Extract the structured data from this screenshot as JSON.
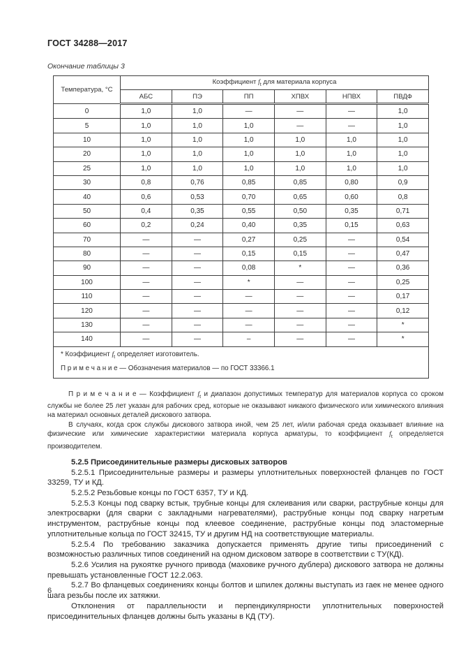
{
  "page": {
    "standard_code": "ГОСТ 34288—2017",
    "table_caption": "Окончание таблицы 3",
    "page_number": "6"
  },
  "table": {
    "temp_header": "Температура, °С",
    "span_header": {
      "prefix": "Коэффициент ",
      "symbol": "f",
      "subscript": "t",
      "suffix": " для материала корпуса"
    },
    "materials": [
      "АБС",
      "ПЭ",
      "ПП",
      "ХПВХ",
      "НПВХ",
      "ПВДФ"
    ],
    "rows": [
      {
        "t": "0",
        "v": [
          "1,0",
          "1,0",
          "—",
          "—",
          "—",
          "1,0"
        ]
      },
      {
        "t": "5",
        "v": [
          "1,0",
          "1,0",
          "1,0",
          "—",
          "—",
          "1,0"
        ]
      },
      {
        "t": "10",
        "v": [
          "1,0",
          "1,0",
          "1,0",
          "1,0",
          "1,0",
          "1,0"
        ]
      },
      {
        "t": "20",
        "v": [
          "1,0",
          "1,0",
          "1,0",
          "1,0",
          "1,0",
          "1,0"
        ]
      },
      {
        "t": "25",
        "v": [
          "1,0",
          "1,0",
          "1,0",
          "1,0",
          "1,0",
          "1,0"
        ]
      },
      {
        "t": "30",
        "v": [
          "0,8",
          "0,76",
          "0,85",
          "0,85",
          "0,80",
          "0,9"
        ]
      },
      {
        "t": "40",
        "v": [
          "0,6",
          "0,53",
          "0,70",
          "0,65",
          "0,60",
          "0,8"
        ]
      },
      {
        "t": "50",
        "v": [
          "0,4",
          "0,35",
          "0,55",
          "0,50",
          "0,35",
          "0,71"
        ]
      },
      {
        "t": "60",
        "v": [
          "0,2",
          "0,24",
          "0,40",
          "0,35",
          "0,15",
          "0,63"
        ]
      },
      {
        "t": "70",
        "v": [
          "—",
          "—",
          "0,27",
          "0,25",
          "—",
          "0,54"
        ]
      },
      {
        "t": "80",
        "v": [
          "—",
          "—",
          "0,15",
          "0,15",
          "—",
          "0,47"
        ]
      },
      {
        "t": "90",
        "v": [
          "—",
          "—",
          "0,08",
          "*",
          "—",
          "0,36"
        ]
      },
      {
        "t": "100",
        "v": [
          "—",
          "—",
          "*",
          "—",
          "—",
          "0,25"
        ]
      },
      {
        "t": "110",
        "v": [
          "—",
          "—",
          "—",
          "—",
          "—",
          "0,17"
        ]
      },
      {
        "t": "120",
        "v": [
          "—",
          "—",
          "—",
          "—",
          "—",
          "0,12"
        ]
      },
      {
        "t": "130",
        "v": [
          "—",
          "—",
          "—",
          "—",
          "—",
          "*"
        ]
      },
      {
        "t": "140",
        "v": [
          "—",
          "—",
          "–",
          "—",
          "—",
          "*"
        ]
      }
    ],
    "footnote_star": {
      "pre": "* Коэффициент ",
      "symbol": "f",
      "subscript": "t",
      "post": " определяет изготовитель."
    },
    "footnote_note": "П р и м е ч а н и е — Обозначения материалов — по ГОСТ 33366.1"
  },
  "notes": {
    "p1": {
      "pre": "П р и м е ч а н и е  — Коэффициент ",
      "symbol": "f",
      "subscript": "t",
      "post": " и диапазон допустимых температур для материалов корпуса со сроком службы не более 25 лет указан для рабочих сред, которые не оказывают никакого физического или химического влияния на материал основных деталей дискового затвора."
    },
    "p2": {
      "pre": "В случаях, когда срок службы дискового затвора иной, чем 25 лет, и/или рабочая среда оказывает влияние на физические или химические характеристики материала корпуса арматуры, то коэффициент ",
      "symbol": "f",
      "subscript": "t",
      "post": " определяется производителем."
    }
  },
  "body": {
    "heading": "5.2.5 Присоединительные размеры дисковых затворов",
    "paragraphs": [
      "5.2.5.1 Присоединительные размеры и размеры уплотнительных поверхностей фланцев по ГОСТ 33259, ТУ и КД.",
      "5.2.5.2 Резьбовые концы по ГОСТ 6357, ТУ и КД.",
      "5.2.5.3 Концы под сварку встык, трубные концы для склеивания или сварки, раструбные концы для электросварки (для сварки с закладными нагревателями), раструбные концы под сварку нагретым инструментом, раструбные концы под клеевое соединение, раструбные концы под эластомерные уплотнительные кольца по ГОСТ 32415, ТУ и другим НД на соответствующие материалы.",
      "5.2.5.4 По требованию заказчика допускается применять другие типы присоединений с возможностью различных типов соединений на одном дисковом затворе в соответствии с ТУ(КД).",
      "5.2.6 Усилия на рукоятке ручного привода (маховике ручного дублера) дискового затвора не должны превышать установленные ГОСТ 12.2.063.",
      "5.2.7 Во фланцевых соединениях концы болтов и шпилек должны выступать из гаек не менее одного шага резьбы после их затяжки.",
      "Отклонения от параллельности и перпендикулярности уплотнительных поверхностей присоединительных фланцев должны быть указаны в КД (ТУ)."
    ]
  }
}
